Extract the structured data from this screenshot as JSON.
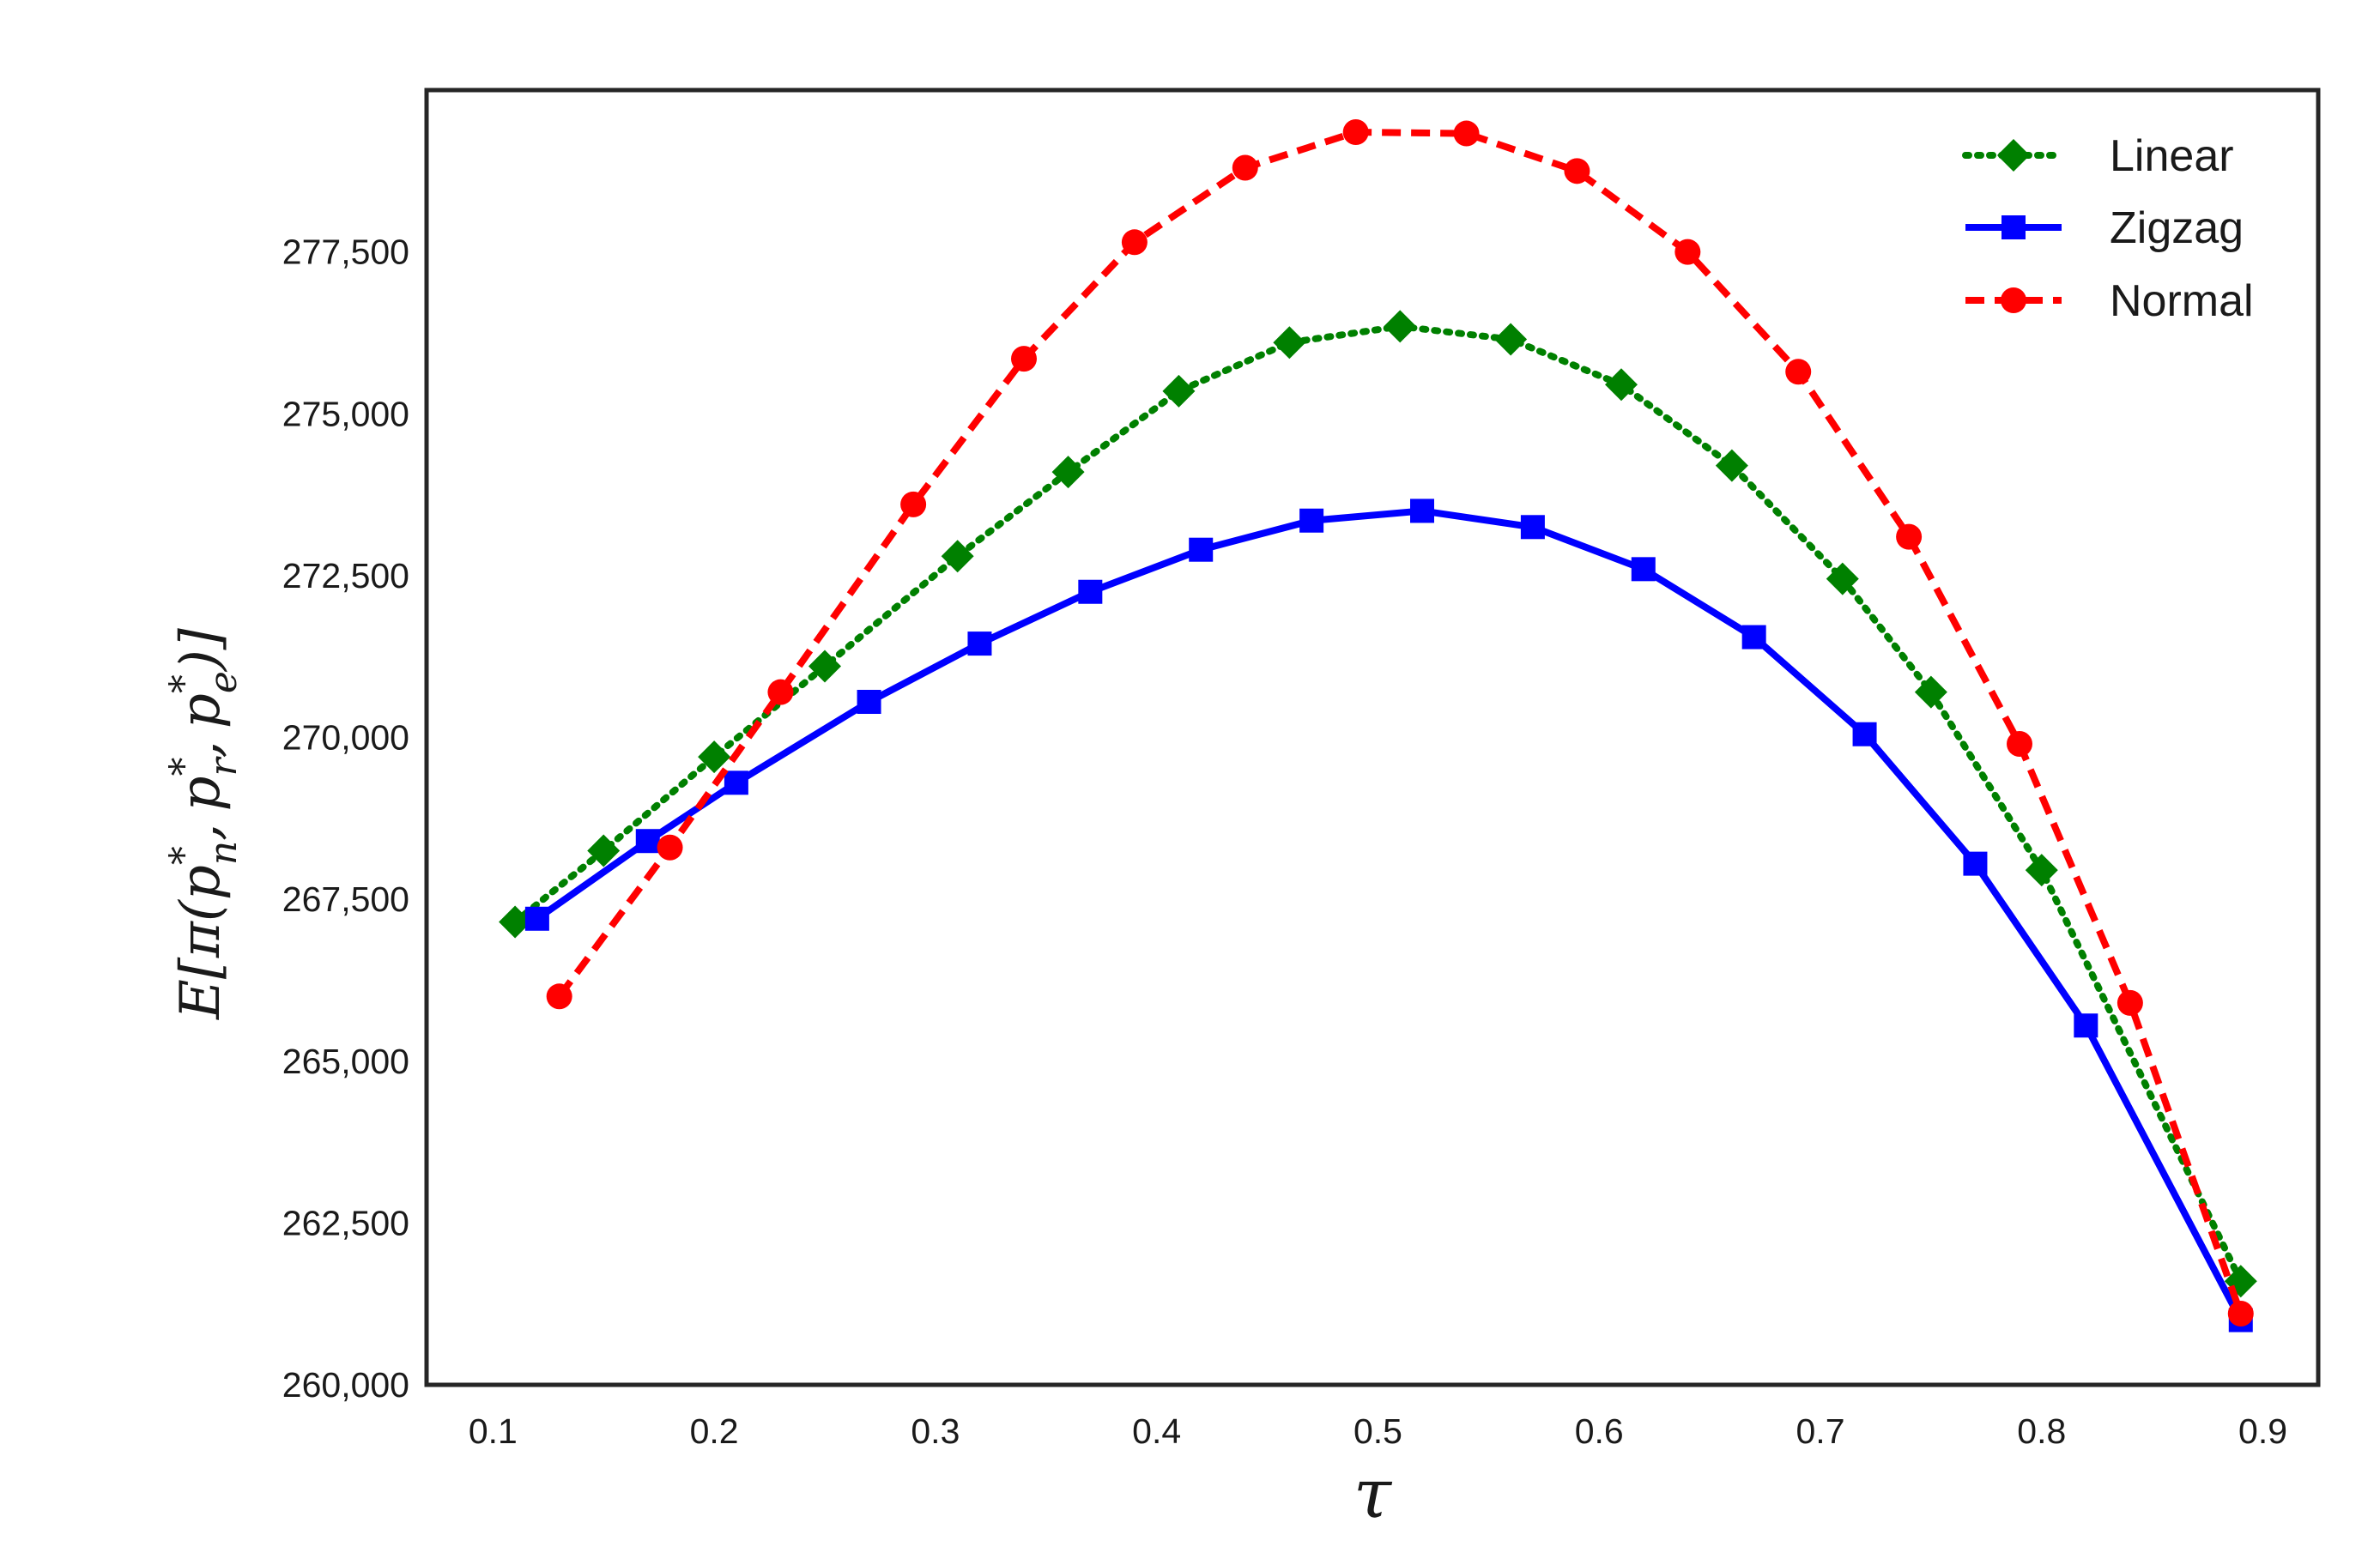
{
  "chart_data": {
    "type": "line",
    "title": "",
    "xlabel": "τ",
    "ylabel": "E[π(p*n, p*r, p*e)]",
    "ylabel_parts": {
      "prefix": "E[π(",
      "p_base": "p",
      "star": "*",
      "sub_n": "n",
      "sub_r": "r",
      "sub_e": "e",
      "sep": ",",
      "suffix": ")]"
    },
    "xlim": [
      0.07,
      0.925
    ],
    "ylim": [
      260000,
      280000
    ],
    "xticks": [
      {
        "value": 0.1,
        "label": "0.1"
      },
      {
        "value": 0.2,
        "label": "0.2"
      },
      {
        "value": 0.3,
        "label": "0.3"
      },
      {
        "value": 0.4,
        "label": "0.4"
      },
      {
        "value": 0.5,
        "label": "0.5"
      },
      {
        "value": 0.6,
        "label": "0.6"
      },
      {
        "value": 0.7,
        "label": "0.7"
      },
      {
        "value": 0.8,
        "label": "0.8"
      },
      {
        "value": 0.9,
        "label": "0.9"
      }
    ],
    "yticks": [
      {
        "value": 260000,
        "label": "260,000"
      },
      {
        "value": 262500,
        "label": "262,500"
      },
      {
        "value": 265000,
        "label": "265,000"
      },
      {
        "value": 267500,
        "label": "267,500"
      },
      {
        "value": 270000,
        "label": "270,000"
      },
      {
        "value": 272500,
        "label": "272,500"
      },
      {
        "value": 275000,
        "label": "275,000"
      },
      {
        "value": 277500,
        "label": "277,500"
      }
    ],
    "grid": false,
    "legend_position": "top-right",
    "series": [
      {
        "name": "Linear",
        "color": "#008000",
        "line_style": "dotted",
        "marker": "diamond",
        "x": [
          0.11,
          0.15,
          0.2,
          0.25,
          0.31,
          0.36,
          0.41,
          0.46,
          0.51,
          0.56,
          0.61,
          0.66,
          0.71,
          0.75,
          0.8,
          0.89
        ],
        "y": [
          267150,
          268250,
          269700,
          271100,
          272800,
          274100,
          275350,
          276100,
          276350,
          276150,
          275450,
          274200,
          272450,
          270700,
          267950,
          261600
        ]
      },
      {
        "name": "Zigzag",
        "color": "#0000ff",
        "line_style": "solid",
        "marker": "square",
        "x": [
          0.12,
          0.17,
          0.21,
          0.27,
          0.32,
          0.37,
          0.42,
          0.47,
          0.52,
          0.57,
          0.62,
          0.67,
          0.72,
          0.77,
          0.82,
          0.89
        ],
        "y": [
          267200,
          268400,
          269300,
          270550,
          271450,
          272250,
          272900,
          273350,
          273500,
          273250,
          272600,
          271550,
          270050,
          268050,
          265550,
          261000
        ]
      },
      {
        "name": "Normal",
        "color": "#ff0000",
        "line_style": "dashed",
        "marker": "circle",
        "x": [
          0.13,
          0.18,
          0.23,
          0.29,
          0.34,
          0.39,
          0.44,
          0.49,
          0.54,
          0.59,
          0.64,
          0.69,
          0.74,
          0.79,
          0.84,
          0.89
        ],
        "y": [
          266000,
          268300,
          270700,
          273600,
          275850,
          277650,
          278800,
          279350,
          279330,
          278750,
          277500,
          275650,
          273100,
          269900,
          265900,
          261100
        ]
      }
    ]
  }
}
